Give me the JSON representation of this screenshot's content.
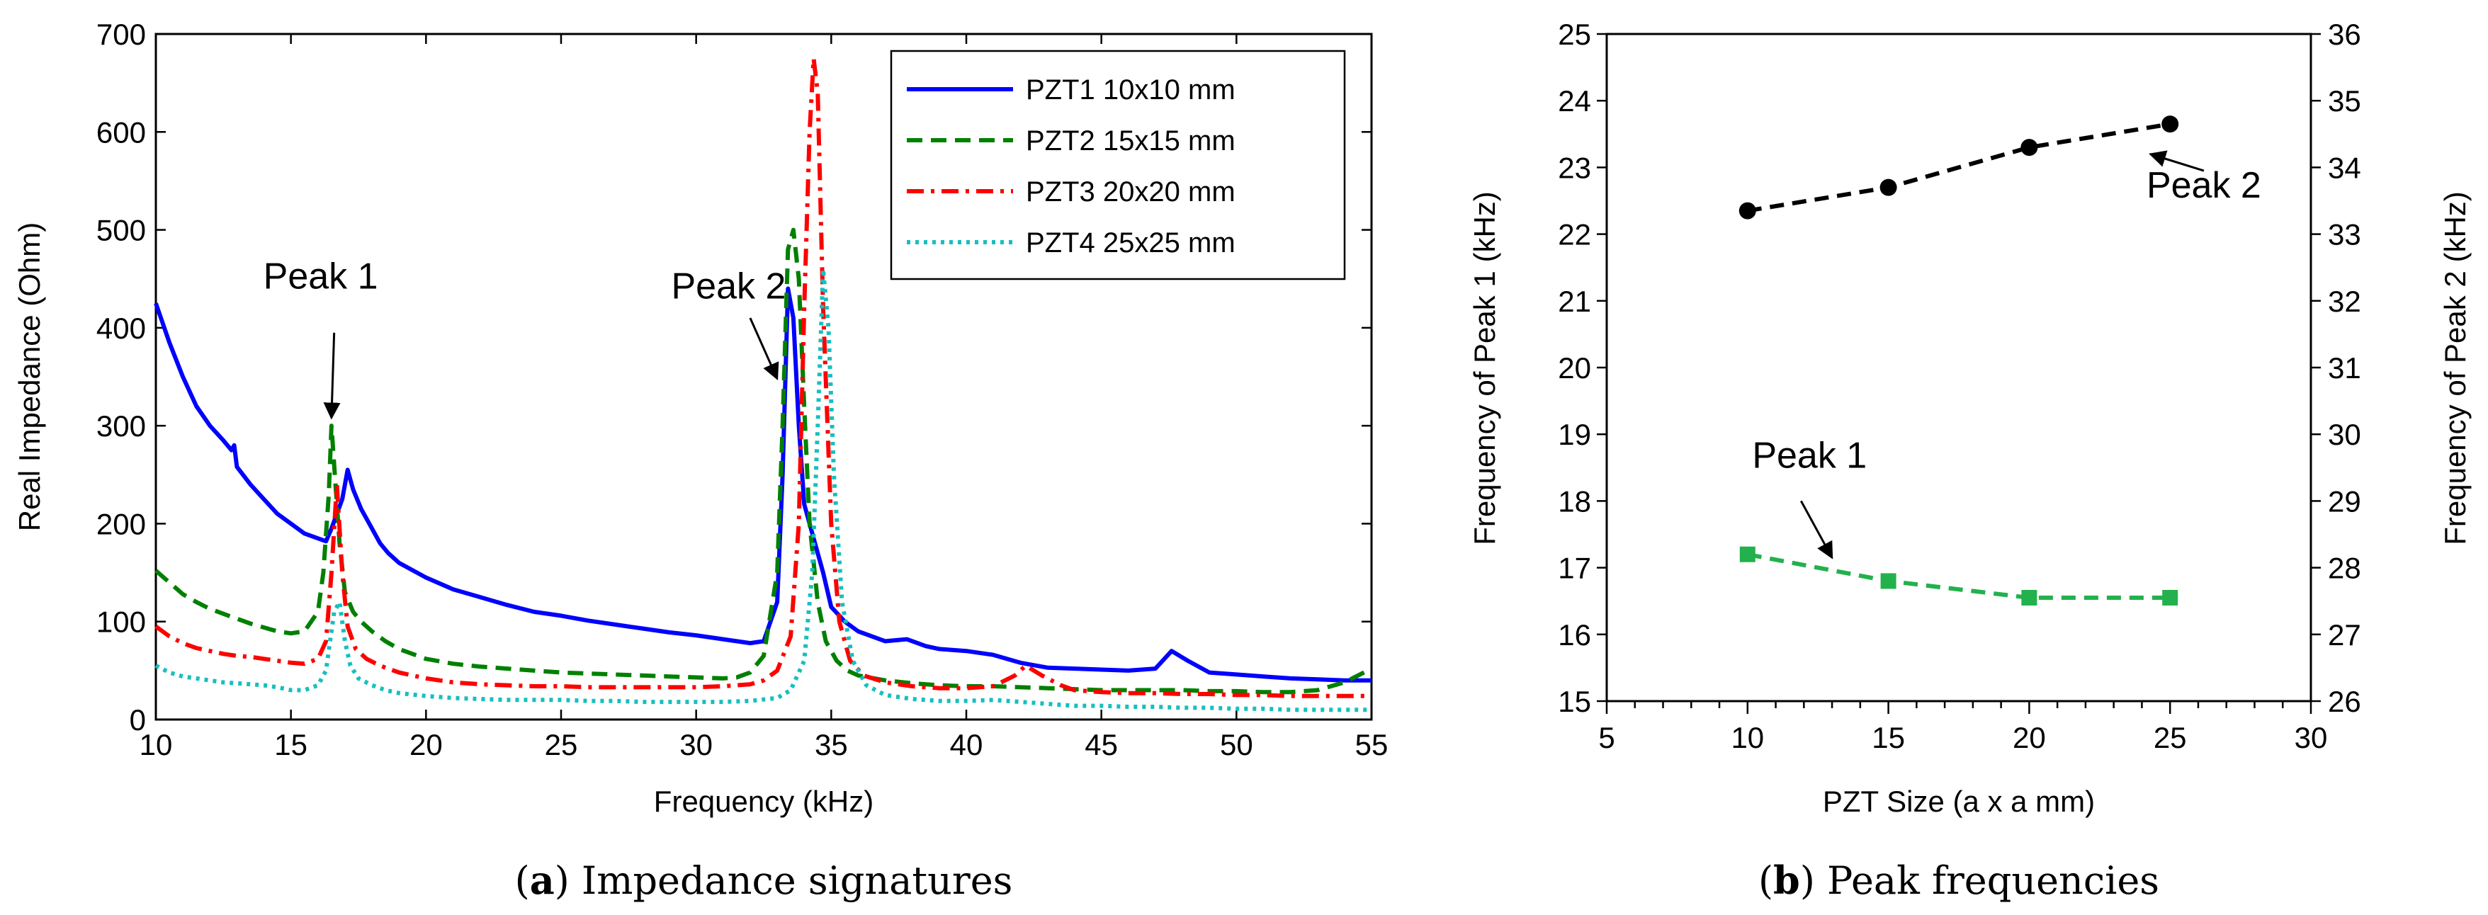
{
  "chart_data": [
    {
      "type": "line",
      "caption_letter": "a",
      "caption_text": " Impedance signatures",
      "xlabel": "Frequency (kHz)",
      "ylabel": "Real Impedance (Ohm)",
      "xlim": [
        10,
        55
      ],
      "ylim": [
        0,
        700
      ],
      "xticks": [
        "10",
        "15",
        "20",
        "25",
        "30",
        "35",
        "40",
        "45",
        "50",
        "55"
      ],
      "yticks": [
        "0",
        "100",
        "200",
        "300",
        "400",
        "500",
        "600",
        "700"
      ],
      "legend_position": "top-right",
      "series": [
        {
          "name": "PZT1 10x10 mm",
          "color": "#0000ff",
          "style": "solid",
          "x": [
            10,
            10.5,
            11,
            11.5,
            12,
            12.5,
            12.8,
            12.9,
            13.0,
            13.5,
            14,
            14.5,
            15,
            15.5,
            16,
            16.3,
            16.5,
            16.7,
            16.9,
            17.1,
            17.3,
            17.6,
            18,
            18.3,
            18.6,
            19,
            20,
            21,
            22,
            23,
            24,
            25,
            26,
            27,
            28,
            29,
            30,
            31,
            32,
            32.5,
            33,
            33.2,
            33.4,
            33.6,
            33.8,
            34,
            34.3,
            34.7,
            35,
            35.5,
            36,
            37,
            37.8,
            38.5,
            39,
            40,
            41,
            42,
            43,
            44,
            45,
            46,
            47,
            47.6,
            48.2,
            49,
            50,
            51,
            52,
            53,
            54,
            55
          ],
          "y": [
            425,
            385,
            350,
            320,
            300,
            285,
            275,
            280,
            258,
            240,
            225,
            210,
            200,
            190,
            185,
            182,
            195,
            210,
            225,
            255,
            235,
            215,
            195,
            180,
            170,
            160,
            145,
            133,
            125,
            117,
            110,
            106,
            101,
            97,
            93,
            89,
            86,
            82,
            78,
            80,
            120,
            250,
            440,
            410,
            300,
            220,
            190,
            150,
            115,
            100,
            90,
            80,
            82,
            75,
            72,
            70,
            66,
            58,
            53,
            52,
            51,
            50,
            52,
            70,
            60,
            48,
            46,
            44,
            42,
            41,
            40,
            40
          ]
        },
        {
          "name": "PZT2 15x15 mm",
          "color": "#008000",
          "style": "dashed",
          "x": [
            10,
            10.5,
            11,
            11.5,
            12,
            12.5,
            13,
            13.5,
            14,
            14.5,
            15,
            15.5,
            16,
            16.2,
            16.4,
            16.5,
            16.6,
            16.8,
            17.0,
            17.3,
            17.6,
            18,
            18.5,
            19,
            20,
            21,
            22,
            23,
            24,
            25,
            26,
            27,
            28,
            29,
            30,
            31,
            31.5,
            32,
            32.5,
            33,
            33.2,
            33.4,
            33.6,
            33.8,
            34,
            34.2,
            34.5,
            34.8,
            35.2,
            35.6,
            36,
            37,
            38,
            39,
            40,
            41,
            42,
            43,
            44,
            45,
            46,
            47,
            48,
            49,
            50,
            51,
            52,
            53,
            54,
            55
          ],
          "y": [
            152,
            140,
            128,
            120,
            113,
            108,
            103,
            98,
            94,
            90,
            88,
            90,
            110,
            150,
            230,
            300,
            260,
            180,
            130,
            110,
            100,
            90,
            80,
            72,
            62,
            57,
            54,
            52,
            50,
            48,
            47,
            46,
            45,
            44,
            43,
            42,
            43,
            48,
            65,
            150,
            300,
            480,
            500,
            450,
            320,
            200,
            120,
            80,
            60,
            50,
            45,
            40,
            37,
            35,
            34,
            34,
            33,
            32,
            31,
            30,
            30,
            30,
            30,
            29,
            29,
            28,
            28,
            30,
            38,
            52
          ]
        },
        {
          "name": "PZT3 20x20 mm",
          "color": "#ff0000",
          "style": "dashdot",
          "x": [
            10,
            10.5,
            11,
            11.5,
            12,
            12.5,
            13,
            13.5,
            14,
            14.5,
            15,
            15.5,
            16,
            16.3,
            16.5,
            16.7,
            16.9,
            17.1,
            17.4,
            17.8,
            18.3,
            19,
            20,
            21,
            22,
            23,
            24,
            25,
            26,
            27,
            28,
            29,
            30,
            31,
            32,
            32.5,
            33,
            33.5,
            33.8,
            34.0,
            34.2,
            34.35,
            34.5,
            34.7,
            35.0,
            35.3,
            35.7,
            36.2,
            37,
            38,
            39,
            40,
            41,
            41.8,
            42.2,
            42.8,
            43.5,
            44,
            45,
            46,
            47,
            48,
            49,
            50,
            51,
            52,
            53,
            54,
            55
          ],
          "y": [
            95,
            85,
            78,
            73,
            70,
            67,
            65,
            64,
            62,
            60,
            58,
            57,
            62,
            80,
            150,
            240,
            150,
            95,
            72,
            62,
            55,
            48,
            42,
            38,
            36,
            35,
            34,
            34,
            33,
            33,
            33,
            33,
            33,
            34,
            36,
            40,
            50,
            85,
            200,
            420,
            600,
            675,
            640,
            420,
            200,
            100,
            60,
            45,
            38,
            34,
            32,
            32,
            34,
            45,
            55,
            45,
            35,
            30,
            28,
            27,
            27,
            26,
            26,
            25,
            25,
            24,
            24,
            24,
            24
          ]
        },
        {
          "name": "PZT4 25x25 mm",
          "color": "#17bfbf",
          "style": "dotted",
          "x": [
            10,
            10.5,
            11,
            11.5,
            12,
            12.5,
            13,
            13.5,
            14,
            14.5,
            15,
            15.5,
            16,
            16.3,
            16.6,
            16.8,
            17.0,
            17.2,
            17.5,
            18,
            18.5,
            19,
            20,
            21,
            22,
            23,
            24,
            25,
            26,
            27,
            28,
            29,
            30,
            31,
            32,
            33,
            33.5,
            34,
            34.3,
            34.5,
            34.7,
            34.9,
            35.1,
            35.4,
            35.8,
            36.3,
            37,
            38,
            39,
            40,
            41,
            42,
            43,
            44,
            45,
            46,
            47,
            48,
            49,
            50,
            51,
            52,
            53,
            54,
            55
          ],
          "y": [
            55,
            48,
            44,
            42,
            40,
            38,
            37,
            36,
            35,
            33,
            30,
            30,
            35,
            50,
            110,
            120,
            80,
            55,
            42,
            35,
            30,
            27,
            24,
            22,
            21,
            20,
            20,
            20,
            19,
            19,
            18,
            18,
            18,
            18,
            19,
            22,
            30,
            60,
            150,
            300,
            460,
            400,
            250,
            120,
            60,
            35,
            25,
            21,
            19,
            19,
            20,
            18,
            16,
            14,
            14,
            13,
            13,
            12,
            12,
            11,
            11,
            10,
            10,
            10,
            10
          ]
        }
      ],
      "annotations": [
        {
          "text": "Peak 1",
          "x": 16.1,
          "y": 440,
          "arrow_to": [
            16.5,
            325
          ]
        },
        {
          "text": "Peak 2",
          "x": 31.2,
          "y": 430,
          "arrow_to": [
            33.1,
            345
          ]
        }
      ]
    },
    {
      "type": "line",
      "caption_letter": "b",
      "caption_text": " Peak frequencies",
      "xlabel": "PZT Size (a x a mm)",
      "ylabel": "Frequency of Peak 1 (kHz)",
      "y2label": "Frequency of Peak 2 (kHz)",
      "xlim": [
        5,
        30
      ],
      "ylim": [
        15,
        25
      ],
      "y2lim": [
        26,
        36
      ],
      "xticks": [
        "5",
        "10",
        "15",
        "20",
        "25",
        "30"
      ],
      "yticks": [
        "15",
        "16",
        "17",
        "18",
        "19",
        "20",
        "21",
        "22",
        "23",
        "24",
        "25"
      ],
      "y2ticks": [
        "26",
        "27",
        "28",
        "29",
        "30",
        "31",
        "32",
        "33",
        "34",
        "35",
        "36"
      ],
      "series": [
        {
          "name": "Peak 1",
          "axis": "left",
          "color": "#22b14c",
          "marker": "square",
          "style": "dashed",
          "x": [
            10,
            15,
            20,
            25
          ],
          "y": [
            17.2,
            16.8,
            16.55,
            16.55
          ]
        },
        {
          "name": "Peak 2",
          "axis": "right",
          "color": "#000000",
          "marker": "circle",
          "style": "dashed",
          "x": [
            10,
            15,
            20,
            25
          ],
          "y": [
            33.35,
            33.7,
            34.3,
            34.65
          ]
        }
      ],
      "annotations": [
        {
          "text": "Peak 2",
          "x": 26.2,
          "y": 33.55,
          "arrow_from": [
            26.2,
            33.95
          ],
          "arrow_to": [
            24.3,
            34.2
          ]
        },
        {
          "text": "Peak 1",
          "x": 12.2,
          "y": 18.5,
          "arrow_from": [
            11.9,
            18.0
          ],
          "arrow_to": [
            13.0,
            17.15
          ]
        }
      ]
    }
  ]
}
